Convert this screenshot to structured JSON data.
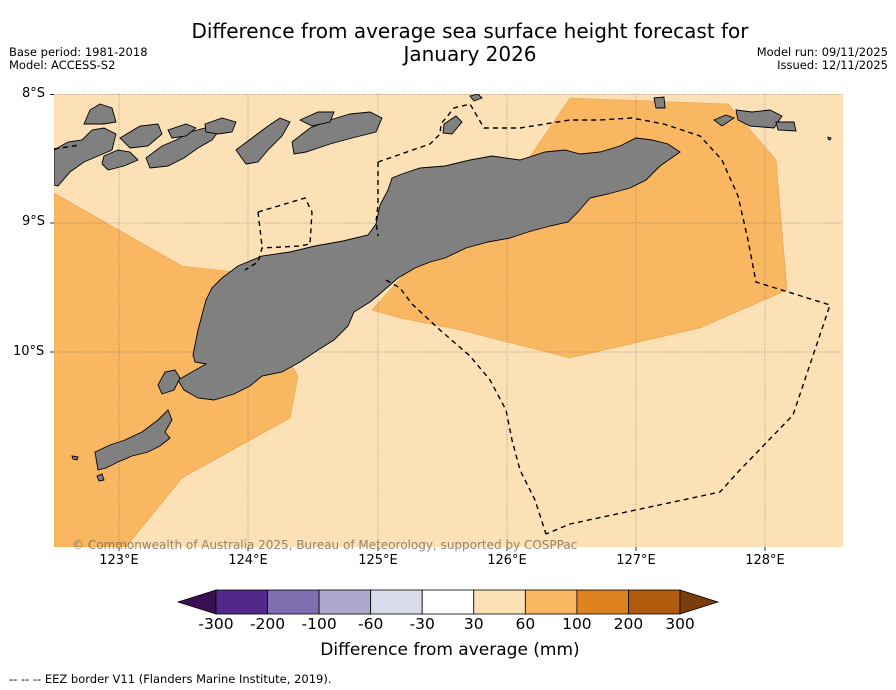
{
  "title_line1": "Difference from average sea surface height forecast for",
  "title_line2": "January 2026",
  "meta_left": {
    "base_period": "Base period: 1981-2018",
    "model": "Model: ACCESS-S2"
  },
  "meta_right": {
    "model_run": "Model run: 09/11/2025",
    "issued": "Issued: 12/11/2025"
  },
  "lat_labels": [
    "8°S",
    "9°S",
    "10°S"
  ],
  "lon_labels": [
    "123°E",
    "124°E",
    "125°E",
    "126°E",
    "127°E",
    "128°E"
  ],
  "copyright": "© Commonwealth of Australia 2025, Bureau of Meteorology, supported by COSPPac",
  "colorbar": {
    "ticks": [
      "-300",
      "-200",
      "-100",
      "-60",
      "-30",
      "30",
      "60",
      "100",
      "200",
      "300"
    ],
    "colors": [
      "#3b1053",
      "#53288a",
      "#7e6fae",
      "#aca8d0",
      "#d9dbea",
      "#ffffff",
      "#fde1b6",
      "#f9b761",
      "#de8220",
      "#b15c0d",
      "#7a3c0b"
    ],
    "label": "Difference from average (mm)"
  },
  "map_colors": {
    "land": "#808080",
    "bg": "#fde1b6",
    "warm": "#f9b761"
  },
  "footer": "--  --  -- EEZ border V11 (Flanders Marine Institute, 2019)."
}
